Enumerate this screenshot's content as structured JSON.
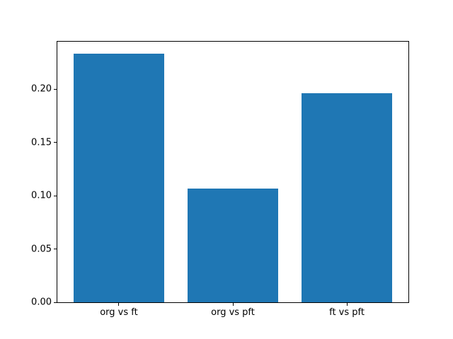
{
  "figure": {
    "background": "#ffffff",
    "frame_color": "#000000",
    "tick_color": "#000000",
    "label_color": "#000000"
  },
  "chart_data": {
    "type": "bar",
    "title": "",
    "xlabel": "",
    "ylabel": "",
    "categories": [
      "org vs ft",
      "org vs pft",
      "ft vs pft"
    ],
    "values": [
      0.233,
      0.107,
      0.196
    ],
    "bar_color": "#1f77b4",
    "bar_width_units": 0.8,
    "x_positions": [
      0,
      1,
      2
    ],
    "xlim": [
      -0.54,
      2.54
    ],
    "ylim": [
      0,
      0.2445
    ],
    "yticks": [
      0.0,
      0.05,
      0.1,
      0.15,
      0.2
    ],
    "ytick_labels": [
      "0.00",
      "0.05",
      "0.10",
      "0.15",
      "0.20"
    ],
    "grid": false,
    "legend": null
  }
}
